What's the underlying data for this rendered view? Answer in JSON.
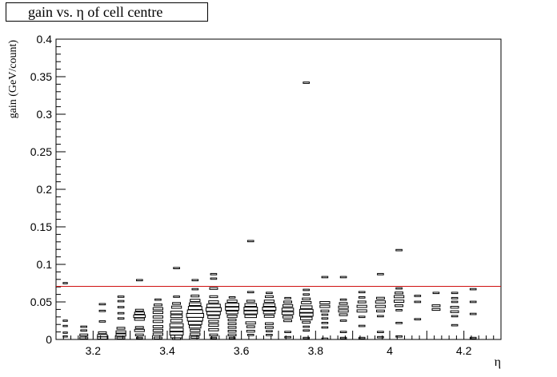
{
  "chart_data": {
    "type": "scatter",
    "style": "box-histogram",
    "title": "gain vs. η of cell centre",
    "xlabel": "η",
    "ylabel": "gain (GeV/count)",
    "xlim": [
      3.1,
      4.3
    ],
    "ylim": [
      0,
      0.4
    ],
    "x_ticks": [
      "3.2",
      "3.4",
      "3.6",
      "3.8",
      "4",
      "4.2"
    ],
    "y_ticks": [
      "0",
      "0.05",
      "0.1",
      "0.15",
      "0.2",
      "0.25",
      "0.3",
      "0.35",
      "0.4"
    ],
    "threshold_line": {
      "y": 0.0707,
      "color": "#d01010"
    },
    "columns": [
      {
        "eta": 3.125,
        "boxes": [
          [
            0.075,
            1
          ],
          [
            0.025,
            1
          ],
          [
            0.018,
            1
          ],
          [
            0.009,
            1
          ],
          [
            0.004,
            1
          ]
        ]
      },
      {
        "eta": 3.175,
        "boxes": [
          [
            0.017,
            2
          ],
          [
            0.012,
            2
          ],
          [
            0.006,
            3
          ],
          [
            0.002,
            3
          ]
        ]
      },
      {
        "eta": 3.225,
        "boxes": [
          [
            0.047,
            2
          ],
          [
            0.038,
            2
          ],
          [
            0.024,
            2
          ],
          [
            0.009,
            3
          ],
          [
            0.005,
            4
          ],
          [
            0.002,
            4
          ]
        ]
      },
      {
        "eta": 3.275,
        "boxes": [
          [
            0.057,
            2
          ],
          [
            0.051,
            2
          ],
          [
            0.043,
            2
          ],
          [
            0.035,
            2
          ],
          [
            0.028,
            2
          ],
          [
            0.015,
            3
          ],
          [
            0.01,
            4
          ],
          [
            0.006,
            4
          ],
          [
            0.002,
            3
          ]
        ]
      },
      {
        "eta": 3.325,
        "boxes": [
          [
            0.079,
            2
          ],
          [
            0.039,
            3
          ],
          [
            0.035,
            4
          ],
          [
            0.031,
            5
          ],
          [
            0.027,
            4
          ],
          [
            0.016,
            3
          ],
          [
            0.012,
            4
          ],
          [
            0.006,
            3
          ],
          [
            0.002,
            2
          ]
        ]
      },
      {
        "eta": 3.375,
        "boxes": [
          [
            0.053,
            2
          ],
          [
            0.046,
            3
          ],
          [
            0.041,
            4
          ],
          [
            0.036,
            4
          ],
          [
            0.03,
            4
          ],
          [
            0.024,
            4
          ],
          [
            0.017,
            4
          ],
          [
            0.012,
            4
          ],
          [
            0.007,
            4
          ],
          [
            0.002,
            3
          ]
        ]
      },
      {
        "eta": 3.425,
        "boxes": [
          [
            0.095,
            2
          ],
          [
            0.057,
            2
          ],
          [
            0.048,
            3
          ],
          [
            0.043,
            4
          ],
          [
            0.036,
            5
          ],
          [
            0.031,
            5
          ],
          [
            0.025,
            5
          ],
          [
            0.019,
            6
          ],
          [
            0.013,
            6
          ],
          [
            0.008,
            6
          ],
          [
            0.004,
            5
          ],
          [
            0.001,
            3
          ]
        ]
      },
      {
        "eta": 3.475,
        "boxes": [
          [
            0.079,
            2
          ],
          [
            0.067,
            2
          ],
          [
            0.058,
            3
          ],
          [
            0.052,
            4
          ],
          [
            0.047,
            5
          ],
          [
            0.042,
            6
          ],
          [
            0.037,
            7
          ],
          [
            0.032,
            8
          ],
          [
            0.027,
            7
          ],
          [
            0.022,
            6
          ],
          [
            0.017,
            5
          ],
          [
            0.012,
            4
          ],
          [
            0.007,
            4
          ],
          [
            0.003,
            3
          ]
        ]
      },
      {
        "eta": 3.525,
        "boxes": [
          [
            0.087,
            2
          ],
          [
            0.081,
            2
          ],
          [
            0.068,
            3
          ],
          [
            0.057,
            3
          ],
          [
            0.05,
            4
          ],
          [
            0.045,
            6
          ],
          [
            0.04,
            7
          ],
          [
            0.035,
            6
          ],
          [
            0.03,
            5
          ],
          [
            0.024,
            4
          ],
          [
            0.019,
            4
          ],
          [
            0.013,
            4
          ],
          [
            0.006,
            3
          ],
          [
            0.002,
            2
          ]
        ]
      },
      {
        "eta": 3.575,
        "boxes": [
          [
            0.056,
            2
          ],
          [
            0.051,
            4
          ],
          [
            0.046,
            6
          ],
          [
            0.041,
            6
          ],
          [
            0.036,
            5
          ],
          [
            0.031,
            4
          ],
          [
            0.026,
            3
          ],
          [
            0.021,
            3
          ],
          [
            0.016,
            3
          ],
          [
            0.011,
            3
          ],
          [
            0.006,
            3
          ],
          [
            0.002,
            2
          ]
        ]
      },
      {
        "eta": 3.625,
        "boxes": [
          [
            0.131,
            2
          ],
          [
            0.063,
            2
          ],
          [
            0.051,
            3
          ],
          [
            0.046,
            5
          ],
          [
            0.041,
            6
          ],
          [
            0.036,
            6
          ],
          [
            0.031,
            5
          ],
          [
            0.022,
            4
          ],
          [
            0.017,
            3
          ],
          [
            0.011,
            3
          ],
          [
            0.006,
            2
          ]
        ]
      },
      {
        "eta": 3.675,
        "boxes": [
          [
            0.062,
            2
          ],
          [
            0.057,
            3
          ],
          [
            0.051,
            4
          ],
          [
            0.046,
            5
          ],
          [
            0.041,
            6
          ],
          [
            0.036,
            5
          ],
          [
            0.031,
            4
          ],
          [
            0.021,
            3
          ],
          [
            0.016,
            3
          ],
          [
            0.011,
            2
          ],
          [
            0.006,
            2
          ]
        ]
      },
      {
        "eta": 3.725,
        "boxes": [
          [
            0.055,
            2
          ],
          [
            0.05,
            3
          ],
          [
            0.045,
            4
          ],
          [
            0.04,
            5
          ],
          [
            0.035,
            5
          ],
          [
            0.03,
            4
          ],
          [
            0.025,
            3
          ],
          [
            0.01,
            2
          ],
          [
            0.003,
            2
          ]
        ]
      },
      {
        "eta": 3.775,
        "boxes": [
          [
            0.342,
            2
          ],
          [
            0.066,
            2
          ],
          [
            0.06,
            2
          ],
          [
            0.054,
            3
          ],
          [
            0.049,
            4
          ],
          [
            0.043,
            5
          ],
          [
            0.038,
            6
          ],
          [
            0.033,
            6
          ],
          [
            0.028,
            5
          ],
          [
            0.023,
            3
          ],
          [
            0.017,
            2
          ],
          [
            0.012,
            2
          ],
          [
            0.002,
            2
          ]
        ]
      },
      {
        "eta": 3.825,
        "boxes": [
          [
            0.083,
            2
          ],
          [
            0.049,
            4
          ],
          [
            0.044,
            4
          ],
          [
            0.038,
            3
          ],
          [
            0.033,
            2
          ],
          [
            0.028,
            2
          ],
          [
            0.022,
            2
          ],
          [
            0.016,
            2
          ],
          [
            0.001,
            2
          ]
        ]
      },
      {
        "eta": 3.875,
        "boxes": [
          [
            0.083,
            2
          ],
          [
            0.053,
            2
          ],
          [
            0.048,
            3
          ],
          [
            0.043,
            4
          ],
          [
            0.038,
            4
          ],
          [
            0.033,
            3
          ],
          [
            0.025,
            2
          ],
          [
            0.01,
            2
          ],
          [
            0.002,
            2
          ]
        ]
      },
      {
        "eta": 3.925,
        "boxes": [
          [
            0.063,
            2
          ],
          [
            0.056,
            2
          ],
          [
            0.05,
            3
          ],
          [
            0.044,
            4
          ],
          [
            0.038,
            4
          ],
          [
            0.03,
            2
          ],
          [
            0.018,
            2
          ],
          [
            0.002,
            2
          ]
        ]
      },
      {
        "eta": 3.975,
        "boxes": [
          [
            0.087,
            2
          ],
          [
            0.055,
            3
          ],
          [
            0.05,
            4
          ],
          [
            0.044,
            4
          ],
          [
            0.038,
            3
          ],
          [
            0.031,
            2
          ],
          [
            0.01,
            2
          ],
          [
            0.003,
            2
          ]
        ]
      },
      {
        "eta": 4.025,
        "boxes": [
          [
            0.119,
            2
          ],
          [
            0.068,
            2
          ],
          [
            0.062,
            3
          ],
          [
            0.057,
            4
          ],
          [
            0.051,
            4
          ],
          [
            0.045,
            3
          ],
          [
            0.039,
            2
          ],
          [
            0.022,
            2
          ],
          [
            0.004,
            2
          ]
        ]
      },
      {
        "eta": 4.075,
        "boxes": [
          [
            0.058,
            2
          ],
          [
            0.05,
            2
          ],
          [
            0.027,
            2
          ]
        ]
      },
      {
        "eta": 4.125,
        "boxes": [
          [
            0.062,
            2
          ],
          [
            0.045,
            3
          ],
          [
            0.04,
            3
          ]
        ]
      },
      {
        "eta": 4.175,
        "boxes": [
          [
            0.062,
            2
          ],
          [
            0.055,
            2
          ],
          [
            0.05,
            2
          ],
          [
            0.043,
            3
          ],
          [
            0.037,
            3
          ],
          [
            0.031,
            2
          ],
          [
            0.019,
            2
          ]
        ]
      },
      {
        "eta": 4.225,
        "boxes": [
          [
            0.067,
            2
          ],
          [
            0.05,
            2
          ],
          [
            0.034,
            2
          ],
          [
            0.002,
            2
          ]
        ]
      }
    ]
  }
}
